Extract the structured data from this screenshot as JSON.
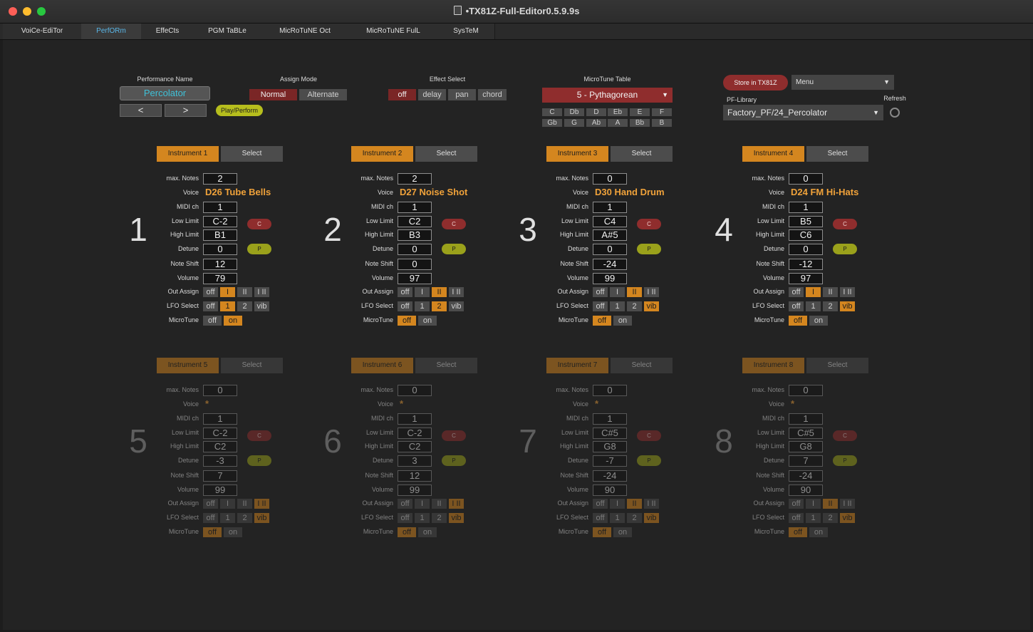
{
  "window": {
    "title": "•TX81Z-Full-Editor0.5.9.9s"
  },
  "tabs": [
    "VoiCe-EdiTor",
    "PerfORm",
    "EffeCts",
    "PGM TaBLe",
    "MicRoTuNE Oct",
    "MicRoTuNE FulL",
    "SysTeM"
  ],
  "active_tab": "PerfORm",
  "header": {
    "perf_name_label": "Performance Name",
    "perf_name_value": "Percolator",
    "prev_label": "<",
    "next_label": ">",
    "play_label": "Play/Perform",
    "assign_mode_label": "Assign Mode",
    "assign_options": [
      "Normal",
      "Alternate"
    ],
    "assign_selected": "Normal",
    "effect_label": "Effect Select",
    "effect_options": [
      "off",
      "delay",
      "pan",
      "chord"
    ],
    "effect_selected": "off",
    "microtune_label": "MicroTune Table",
    "microtune_value": "5 - Pythagorean",
    "notes_row1": [
      "C",
      "Db",
      "D",
      "Eb",
      "E",
      "F"
    ],
    "notes_row2": [
      "Gb",
      "G",
      "Ab",
      "A",
      "Bb",
      "B"
    ],
    "store_label": "Store in TX81Z",
    "menu_label": "Menu",
    "pflib_label": "PF-Library",
    "pflib_value": "Factory_PF/24_Percolator",
    "refresh_label": "Refresh"
  },
  "labels": {
    "max_notes": "max. Notes",
    "voice": "Voice",
    "midi_ch": "MIDI ch",
    "low_limit": "Low Limit",
    "high_limit": "High Limit",
    "detune": "Detune",
    "note_shift": "Note Shift",
    "volume": "Volume",
    "out_assign": "Out Assign",
    "lfo_select": "LFO Select",
    "microtune": "MicroTune",
    "select": "Select",
    "c_btn": "C",
    "p_btn": "P"
  },
  "out_options": [
    "off",
    "I",
    "II",
    "I II"
  ],
  "lfo_options": [
    "off",
    "1",
    "2",
    "vib"
  ],
  "mt_options": [
    "off",
    "on"
  ],
  "instruments": [
    {
      "num": "1",
      "header": "Instrument 1",
      "max_notes": "2",
      "voice": "D26 Tube Bells",
      "midi": "1",
      "low": "C-2",
      "high": "B1",
      "detune": "0",
      "shift": "12",
      "volume": "79",
      "out": 1,
      "lfo": 1,
      "mt": 1
    },
    {
      "num": "2",
      "header": "Instrument 2",
      "max_notes": "2",
      "voice": "D27 Noise Shot",
      "midi": "1",
      "low": "C2",
      "high": "B3",
      "detune": "0",
      "shift": "0",
      "volume": "97",
      "out": 2,
      "lfo": 2,
      "mt": 0
    },
    {
      "num": "3",
      "header": "Instrument 3",
      "max_notes": "0",
      "voice": "D30 Hand Drum",
      "midi": "1",
      "low": "C4",
      "high": "A#5",
      "detune": "0",
      "shift": "-24",
      "volume": "99",
      "out": 2,
      "lfo": 3,
      "mt": 0
    },
    {
      "num": "4",
      "header": "Instrument 4",
      "max_notes": "0",
      "voice": "D24 FM Hi-Hats",
      "midi": "1",
      "low": "B5",
      "high": "C6",
      "detune": "0",
      "shift": "-12",
      "volume": "97",
      "out": 1,
      "lfo": 3,
      "mt": 0
    },
    {
      "num": "5",
      "header": "Instrument 5",
      "max_notes": "0",
      "voice": "*",
      "midi": "1",
      "low": "C-2",
      "high": "C2",
      "detune": "-3",
      "shift": "7",
      "volume": "99",
      "out": 3,
      "lfo": 3,
      "mt": 0
    },
    {
      "num": "6",
      "header": "Instrument 6",
      "max_notes": "0",
      "voice": "*",
      "midi": "1",
      "low": "C-2",
      "high": "C2",
      "detune": "3",
      "shift": "12",
      "volume": "99",
      "out": 3,
      "lfo": 3,
      "mt": 0
    },
    {
      "num": "7",
      "header": "Instrument 7",
      "max_notes": "0",
      "voice": "*",
      "midi": "1",
      "low": "C#5",
      "high": "G8",
      "detune": "-7",
      "shift": "-24",
      "volume": "90",
      "out": 2,
      "lfo": 3,
      "mt": 0
    },
    {
      "num": "8",
      "header": "Instrument 8",
      "max_notes": "0",
      "voice": "*",
      "midi": "1",
      "low": "C#5",
      "high": "G8",
      "detune": "7",
      "shift": "-24",
      "volume": "90",
      "out": 2,
      "lfo": 3,
      "mt": 0
    }
  ]
}
